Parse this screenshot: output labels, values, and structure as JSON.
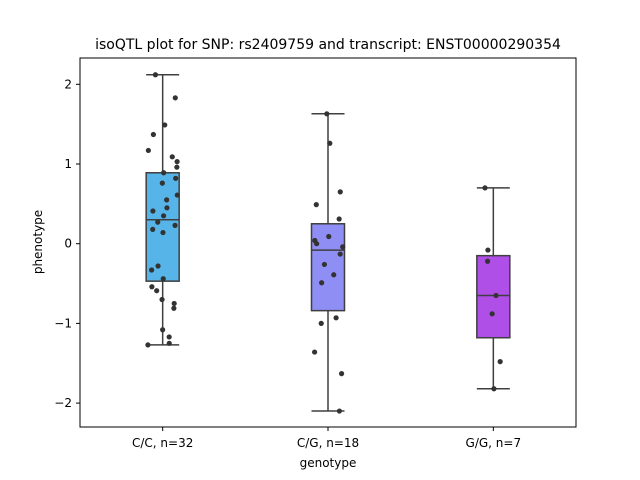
{
  "chart_data": {
    "type": "box",
    "title": "isoQTL plot for SNP: rs2409759 and transcript: ENST00000290354",
    "xlabel": "genotype",
    "ylabel": "phenotype",
    "ylim": [
      -2.3,
      2.33
    ],
    "yticks": [
      -2,
      -1,
      0,
      1,
      2
    ],
    "ytick_labels": [
      "−2",
      "−1",
      "0",
      "1",
      "2"
    ],
    "grid": false,
    "groups": [
      {
        "label": "C/C, n=32",
        "color": "#56b4e9",
        "box": {
          "whisker_low": -1.27,
          "q1": -0.47,
          "median": 0.3,
          "q3": 0.89,
          "whisker_high": 2.12
        },
        "points": [
          2.12,
          1.83,
          1.49,
          1.37,
          1.17,
          1.09,
          1.03,
          0.96,
          0.89,
          0.82,
          0.76,
          0.61,
          0.55,
          0.45,
          0.41,
          0.35,
          0.27,
          0.23,
          0.18,
          0.14,
          -0.28,
          -0.33,
          -0.44,
          -0.54,
          -0.59,
          -0.7,
          -0.75,
          -0.81,
          -1.08,
          -1.17,
          -1.25,
          -1.27
        ]
      },
      {
        "label": "C/G, n=18",
        "color": "#8f8ef5",
        "box": {
          "whisker_low": -2.1,
          "q1": -0.84,
          "median": -0.08,
          "q3": 0.25,
          "whisker_high": 1.63
        },
        "points": [
          1.63,
          1.26,
          0.65,
          0.49,
          0.31,
          0.09,
          0.04,
          0.0,
          -0.04,
          -0.13,
          -0.26,
          -0.39,
          -0.49,
          -0.93,
          -1.0,
          -1.36,
          -1.63,
          -2.1
        ]
      },
      {
        "label": "G/G, n=7",
        "color": "#b04ee8",
        "box": {
          "whisker_low": -1.82,
          "q1": -1.18,
          "median": -0.65,
          "q3": -0.15,
          "whisker_high": 0.7
        },
        "points": [
          0.7,
          -0.08,
          -0.22,
          -0.65,
          -0.88,
          -1.48,
          -1.82
        ]
      }
    ]
  }
}
